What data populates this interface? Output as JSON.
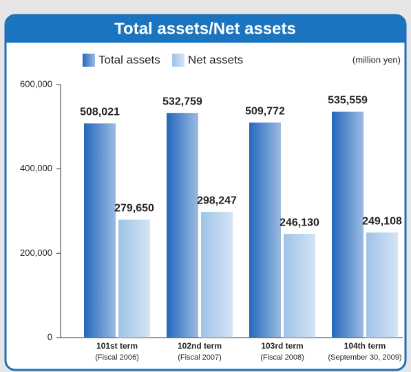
{
  "chart_data": {
    "type": "bar",
    "title": "Total assets/Net assets",
    "unit_note": "(million yen)",
    "categories": [
      "101st term",
      "102nd term",
      "103rd term",
      "104th term"
    ],
    "category_notes": [
      "(Fiscal 2006)",
      "(Fiscal 2007)",
      "(Fiscal 2008)",
      "(September 30, 2009)"
    ],
    "series": [
      {
        "name": "Total assets",
        "color": "#2368bd",
        "values": [
          508021,
          532759,
          509772,
          535559
        ],
        "value_labels": [
          "508,021",
          "532,759",
          "509,772",
          "535,559"
        ]
      },
      {
        "name": "Net assets",
        "color": "#9fc3e8",
        "values": [
          279650,
          298247,
          246130,
          249108
        ],
        "value_labels": [
          "279,650",
          "298,247",
          "246,130",
          "249,108"
        ]
      }
    ],
    "ylim": [
      0,
      600000
    ],
    "yticks": [
      0,
      {
        "value": 200000,
        "label": "200,000"
      },
      {
        "value": 400000,
        "label": "400,000"
      },
      {
        "value": 600000,
        "label": "600,000"
      }
    ]
  }
}
